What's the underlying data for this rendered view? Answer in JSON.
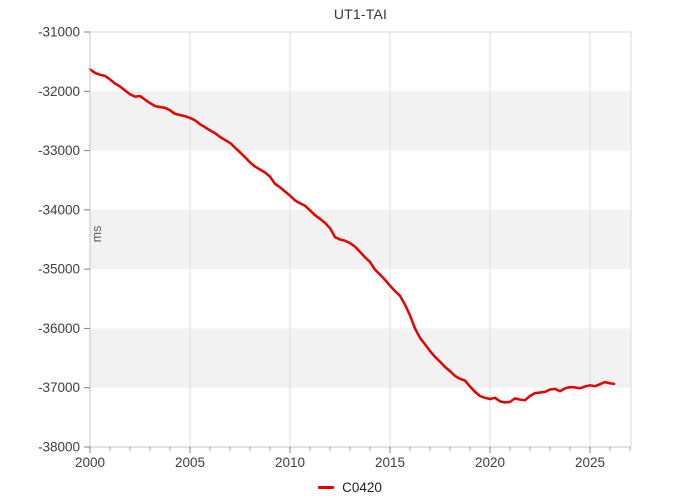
{
  "page": {
    "title": "UT1-TAI"
  },
  "legend": {
    "position": "bottom-center",
    "items": [
      {
        "label": "C0420",
        "color": "#e60000"
      }
    ]
  },
  "colors": {
    "background": "#ffffff",
    "band_white": "#ffffff",
    "band_gray": "#f2f2f2",
    "grid_vertical": "#dcdcdc",
    "axis_line": "#c4c4c4",
    "border_line": "#d9d9d9",
    "tick_major": "#808080",
    "tick_minor": "#a8a8a8",
    "tick_label": "#404040",
    "series_red": "#e60000"
  },
  "chart_data": {
    "type": "line",
    "title": "UT1-TAI",
    "xlabel": "",
    "ylabel": "ms",
    "xlim": [
      2000,
      2027.05
    ],
    "ylim": [
      -38000,
      -31000
    ],
    "xticks_major": [
      2000,
      2005,
      2010,
      2015,
      2020,
      2025
    ],
    "xtick_labels": [
      "2000",
      "2005",
      "2010",
      "2015",
      "2020",
      "2025"
    ],
    "xticks_minor_step": 1,
    "yticks": [
      -31000,
      -32000,
      -33000,
      -34000,
      -35000,
      -36000,
      -37000,
      -38000
    ],
    "ytick_labels": [
      "-31000",
      "-32000",
      "-33000",
      "-34000",
      "-35000",
      "-36000",
      "-37000",
      "-38000"
    ],
    "grid": "vertical-major",
    "bands": "horizontal-alternating-per-ytick",
    "legend_position": "bottom-center",
    "series": [
      {
        "name": "C0420",
        "color": "#e60000",
        "x": [
          2000.0,
          2000.25,
          2000.5,
          2000.75,
          2001.0,
          2001.25,
          2001.5,
          2001.75,
          2002.0,
          2002.25,
          2002.5,
          2002.75,
          2003.0,
          2003.25,
          2003.5,
          2003.75,
          2004.0,
          2004.25,
          2004.5,
          2004.75,
          2005.0,
          2005.25,
          2005.5,
          2005.75,
          2006.0,
          2006.25,
          2006.5,
          2006.75,
          2007.0,
          2007.25,
          2007.5,
          2007.75,
          2008.0,
          2008.25,
          2008.5,
          2008.75,
          2009.0,
          2009.25,
          2009.5,
          2009.75,
          2010.0,
          2010.25,
          2010.5,
          2010.75,
          2011.0,
          2011.25,
          2011.5,
          2011.75,
          2012.0,
          2012.25,
          2012.5,
          2012.75,
          2013.0,
          2013.25,
          2013.5,
          2013.75,
          2014.0,
          2014.25,
          2014.5,
          2014.75,
          2015.0,
          2015.25,
          2015.5,
          2015.75,
          2016.0,
          2016.25,
          2016.5,
          2016.75,
          2017.0,
          2017.25,
          2017.5,
          2017.75,
          2018.0,
          2018.25,
          2018.5,
          2018.75,
          2019.0,
          2019.25,
          2019.5,
          2019.75,
          2020.0,
          2020.25,
          2020.5,
          2020.75,
          2021.0,
          2021.25,
          2021.5,
          2021.75,
          2022.0,
          2022.25,
          2022.5,
          2022.75,
          2023.0,
          2023.25,
          2023.5,
          2023.75,
          2024.0,
          2024.25,
          2024.5,
          2024.75,
          2025.0,
          2025.25,
          2025.5,
          2025.75,
          2026.0,
          2026.2
        ],
        "y": [
          -31630,
          -31690,
          -31720,
          -31740,
          -31800,
          -31870,
          -31920,
          -31985,
          -32050,
          -32090,
          -32080,
          -32140,
          -32200,
          -32250,
          -32265,
          -32280,
          -32320,
          -32380,
          -32400,
          -32420,
          -32450,
          -32490,
          -32555,
          -32605,
          -32660,
          -32705,
          -32770,
          -32820,
          -32870,
          -32950,
          -33030,
          -33110,
          -33200,
          -33270,
          -33320,
          -33370,
          -33440,
          -33560,
          -33620,
          -33690,
          -33760,
          -33840,
          -33890,
          -33930,
          -34010,
          -34090,
          -34150,
          -34220,
          -34310,
          -34460,
          -34500,
          -34520,
          -34560,
          -34620,
          -34710,
          -34800,
          -34880,
          -35010,
          -35090,
          -35180,
          -35280,
          -35370,
          -35450,
          -35600,
          -35780,
          -36000,
          -36160,
          -36270,
          -36380,
          -36480,
          -36560,
          -36650,
          -36720,
          -36800,
          -36850,
          -36880,
          -36980,
          -37070,
          -37140,
          -37170,
          -37190,
          -37170,
          -37230,
          -37250,
          -37240,
          -37180,
          -37200,
          -37210,
          -37140,
          -37090,
          -37080,
          -37070,
          -37030,
          -37020,
          -37060,
          -37010,
          -36990,
          -36995,
          -37010,
          -36980,
          -36960,
          -36975,
          -36940,
          -36905,
          -36925,
          -36935
        ]
      }
    ]
  }
}
